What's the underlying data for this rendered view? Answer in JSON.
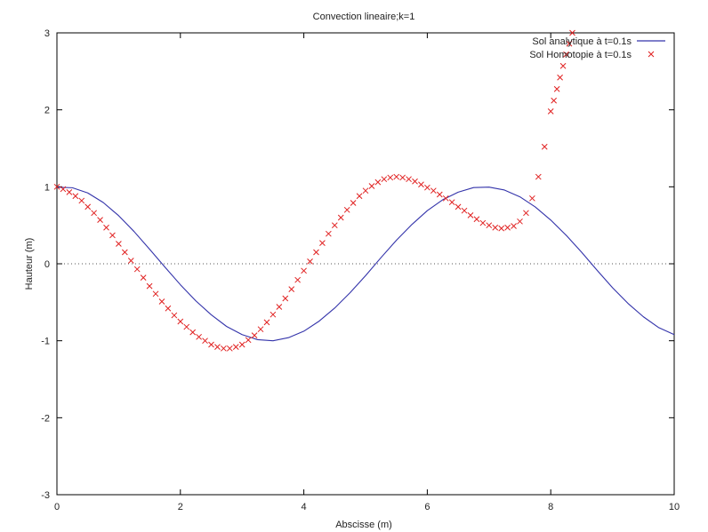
{
  "chart_data": {
    "type": "line",
    "title": "Convection lineaire;k=1",
    "xlabel": "Abscisse (m)",
    "ylabel": "Hauteur (m)",
    "xlim": [
      0,
      10
    ],
    "ylim": [
      -3,
      3
    ],
    "x_ticks": [
      0,
      2,
      4,
      6,
      8,
      10
    ],
    "y_ticks": [
      -3,
      -2,
      -1,
      0,
      1,
      2,
      3
    ],
    "x_tick_labels": [
      "0",
      "2",
      "4",
      "6",
      "8",
      "10"
    ],
    "y_tick_labels": [
      "-3",
      "-2",
      "-1",
      "0",
      "1",
      "2",
      "3"
    ],
    "zero_line": true,
    "legend_position": "top-right",
    "series": [
      {
        "name": "Sol analytique à t=0.1s",
        "style": "line",
        "color": "#3333aa",
        "x": [
          0.0,
          0.25,
          0.5,
          0.75,
          1.0,
          1.25,
          1.5,
          1.75,
          2.0,
          2.25,
          2.5,
          2.75,
          3.0,
          3.25,
          3.5,
          3.75,
          4.0,
          4.25,
          4.5,
          4.75,
          5.0,
          5.25,
          5.5,
          5.75,
          6.0,
          6.25,
          6.5,
          6.75,
          7.0,
          7.25,
          7.5,
          7.75,
          8.0,
          8.25,
          8.5,
          8.75,
          9.0,
          9.25,
          9.5,
          9.75,
          10.0
        ],
        "y": [
          0.995,
          0.988,
          0.92,
          0.796,
          0.625,
          0.419,
          0.191,
          -0.043,
          -0.272,
          -0.482,
          -0.663,
          -0.815,
          -0.92,
          -0.986,
          -1.0,
          -0.96,
          -0.876,
          -0.744,
          -0.575,
          -0.375,
          -0.154,
          0.08,
          0.306,
          0.51,
          0.69,
          0.832,
          0.93,
          0.99,
          0.996,
          0.958,
          0.87,
          0.738,
          0.568,
          0.37,
          0.15,
          -0.084,
          -0.31,
          -0.514,
          -0.688,
          -0.83,
          -0.92
        ]
      },
      {
        "name": "Sol Homotopie à t=0.1s",
        "style": "markers",
        "marker": "x",
        "color": "#e02020",
        "x": [
          0.0,
          0.1,
          0.2,
          0.3,
          0.4,
          0.5,
          0.6,
          0.7,
          0.8,
          0.9,
          1.0,
          1.1,
          1.2,
          1.3,
          1.4,
          1.5,
          1.6,
          1.7,
          1.8,
          1.9,
          2.0,
          2.1,
          2.2,
          2.3,
          2.4,
          2.5,
          2.6,
          2.7,
          2.8,
          2.9,
          3.0,
          3.1,
          3.2,
          3.3,
          3.4,
          3.5,
          3.6,
          3.7,
          3.8,
          3.9,
          4.0,
          4.1,
          4.2,
          4.3,
          4.4,
          4.5,
          4.6,
          4.7,
          4.8,
          4.9,
          5.0,
          5.1,
          5.2,
          5.3,
          5.4,
          5.5,
          5.6,
          5.7,
          5.8,
          5.9,
          6.0,
          6.1,
          6.2,
          6.3,
          6.4,
          6.5,
          6.6,
          6.7,
          6.8,
          6.9,
          7.0,
          7.1,
          7.2,
          7.3,
          7.4,
          7.5,
          7.6,
          7.7,
          7.8,
          7.9,
          8.0,
          8.05,
          8.1,
          8.15,
          8.2,
          8.25,
          8.3,
          8.35
        ],
        "y": [
          1.0,
          0.97,
          0.93,
          0.88,
          0.82,
          0.74,
          0.66,
          0.57,
          0.47,
          0.37,
          0.26,
          0.15,
          0.04,
          -0.07,
          -0.18,
          -0.29,
          -0.39,
          -0.49,
          -0.58,
          -0.67,
          -0.75,
          -0.82,
          -0.89,
          -0.95,
          -1.0,
          -1.05,
          -1.08,
          -1.1,
          -1.1,
          -1.08,
          -1.05,
          -0.99,
          -0.93,
          -0.85,
          -0.76,
          -0.66,
          -0.56,
          -0.45,
          -0.33,
          -0.21,
          -0.09,
          0.03,
          0.15,
          0.27,
          0.39,
          0.5,
          0.6,
          0.7,
          0.79,
          0.88,
          0.95,
          1.01,
          1.06,
          1.1,
          1.12,
          1.13,
          1.12,
          1.1,
          1.07,
          1.03,
          0.99,
          0.95,
          0.9,
          0.85,
          0.8,
          0.74,
          0.69,
          0.63,
          0.58,
          0.53,
          0.5,
          0.47,
          0.46,
          0.47,
          0.49,
          0.55,
          0.66,
          0.85,
          1.13,
          1.52,
          1.98,
          2.12,
          2.27,
          2.42,
          2.57,
          2.72,
          2.86,
          3.0
        ]
      }
    ]
  }
}
